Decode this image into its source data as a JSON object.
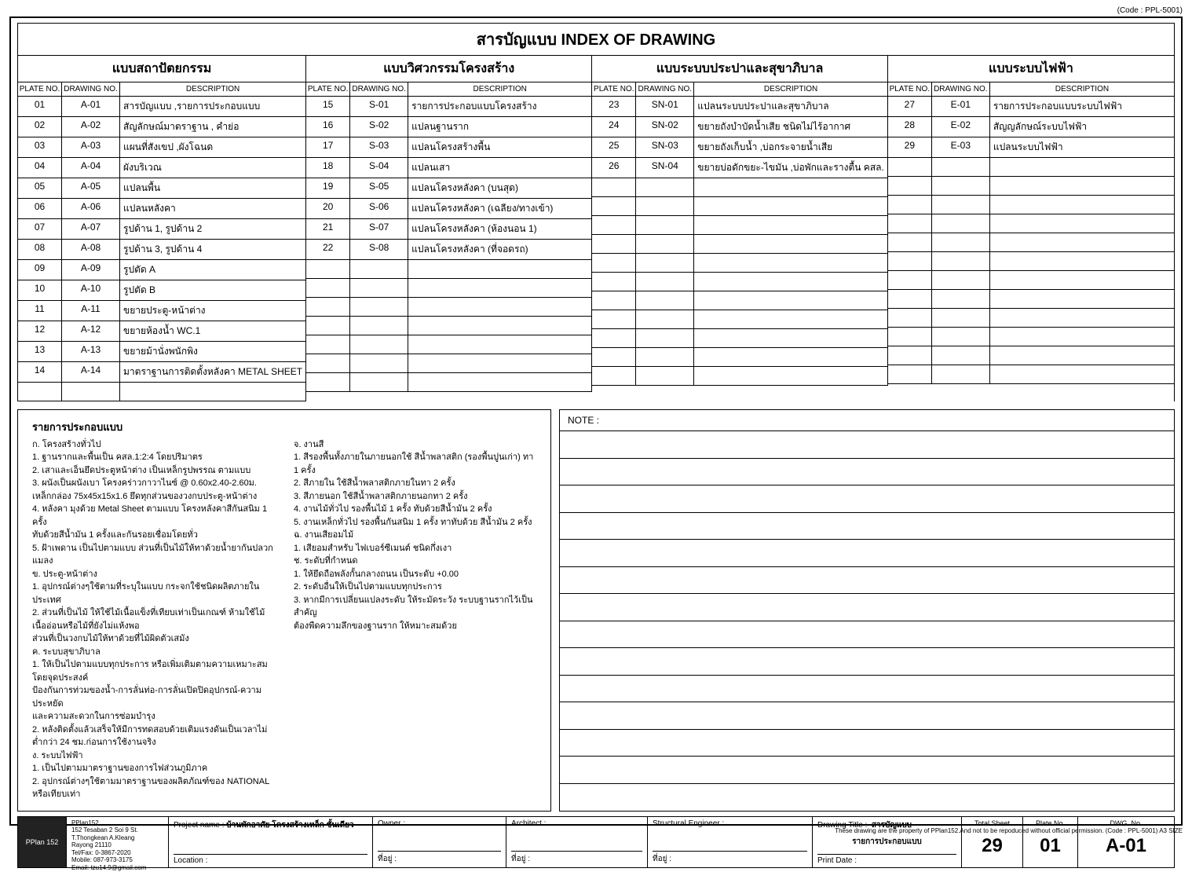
{
  "code_top": "(Code : PPL-5001)",
  "main_title": "สารบัญแบบ INDEX OF DRAWING",
  "col_labels": {
    "plate": "PLATE NO.",
    "dwg": "DRAWING NO.",
    "desc": "DESCRIPTION"
  },
  "sections": [
    {
      "title": "แบบสถาปัตยกรรม",
      "rows": [
        {
          "p": "01",
          "d": "A-01",
          "desc": "สารบัญแบบ ,รายการประกอบแบบ"
        },
        {
          "p": "02",
          "d": "A-02",
          "desc": "สัญลักษณ์มาตราฐาน , คำย่อ"
        },
        {
          "p": "03",
          "d": "A-03",
          "desc": "แผนที่สังเขป ,ผังโฉนด"
        },
        {
          "p": "04",
          "d": "A-04",
          "desc": "ผังบริเวณ"
        },
        {
          "p": "05",
          "d": "A-05",
          "desc": "แปลนพื้น"
        },
        {
          "p": "06",
          "d": "A-06",
          "desc": "แปลนหลังคา"
        },
        {
          "p": "07",
          "d": "A-07",
          "desc": "รูปด้าน 1, รูปด้าน 2"
        },
        {
          "p": "08",
          "d": "A-08",
          "desc": "รูปด้าน 3, รูปด้าน 4"
        },
        {
          "p": "09",
          "d": "A-09",
          "desc": "รูปตัด A"
        },
        {
          "p": "10",
          "d": "A-10",
          "desc": "รูปตัด B"
        },
        {
          "p": "11",
          "d": "A-11",
          "desc": "ขยายประตู-หน้าต่าง"
        },
        {
          "p": "12",
          "d": "A-12",
          "desc": "ขยายห้องน้ำ WC.1"
        },
        {
          "p": "13",
          "d": "A-13",
          "desc": "ขยายม้านั่งพนักพิง"
        },
        {
          "p": "14",
          "d": "A-14",
          "desc": "มาตราฐานการติดตั้งหลังคา METAL SHEET"
        },
        {
          "p": "",
          "d": "",
          "desc": ""
        }
      ]
    },
    {
      "title": "แบบวิศวกรรมโครงสร้าง",
      "rows": [
        {
          "p": "15",
          "d": "S-01",
          "desc": "รายการประกอบแบบโครงสร้าง"
        },
        {
          "p": "16",
          "d": "S-02",
          "desc": "แปลนฐานราก"
        },
        {
          "p": "17",
          "d": "S-03",
          "desc": "แปลนโครงสร้างพื้น"
        },
        {
          "p": "18",
          "d": "S-04",
          "desc": "แปลนเสา"
        },
        {
          "p": "19",
          "d": "S-05",
          "desc": "แปลนโครงหลังคา (บนสุด)"
        },
        {
          "p": "20",
          "d": "S-06",
          "desc": "แปลนโครงหลังคา (เฉลียง/ทางเข้า)"
        },
        {
          "p": "21",
          "d": "S-07",
          "desc": "แปลนโครงหลังคา (ห้องนอน 1)"
        },
        {
          "p": "22",
          "d": "S-08",
          "desc": "แปลนโครงหลังคา (ที่จอดรถ)"
        },
        {
          "p": "",
          "d": "",
          "desc": ""
        },
        {
          "p": "",
          "d": "",
          "desc": ""
        },
        {
          "p": "",
          "d": "",
          "desc": ""
        },
        {
          "p": "",
          "d": "",
          "desc": ""
        },
        {
          "p": "",
          "d": "",
          "desc": ""
        },
        {
          "p": "",
          "d": "",
          "desc": ""
        },
        {
          "p": "",
          "d": "",
          "desc": ""
        }
      ]
    },
    {
      "title": "แบบระบบประปาและสุขาภิบาล",
      "rows": [
        {
          "p": "23",
          "d": "SN-01",
          "desc": "แปลนระบบประปาและสุขาภิบาล"
        },
        {
          "p": "24",
          "d": "SN-02",
          "desc": "ขยายถังบำบัดน้ำเสีย ชนิดไม่ไร้อากาศ"
        },
        {
          "p": "25",
          "d": "SN-03",
          "desc": "ขยายถังเก็บน้ำ ,บ่อกระจายน้ำเสีย"
        },
        {
          "p": "26",
          "d": "SN-04",
          "desc": "ขยายบ่อดักขยะ-ไขมัน ,บ่อพักและรางตื้น คสล."
        },
        {
          "p": "",
          "d": "",
          "desc": ""
        },
        {
          "p": "",
          "d": "",
          "desc": ""
        },
        {
          "p": "",
          "d": "",
          "desc": ""
        },
        {
          "p": "",
          "d": "",
          "desc": ""
        },
        {
          "p": "",
          "d": "",
          "desc": ""
        },
        {
          "p": "",
          "d": "",
          "desc": ""
        },
        {
          "p": "",
          "d": "",
          "desc": ""
        },
        {
          "p": "",
          "d": "",
          "desc": ""
        },
        {
          "p": "",
          "d": "",
          "desc": ""
        },
        {
          "p": "",
          "d": "",
          "desc": ""
        },
        {
          "p": "",
          "d": "",
          "desc": ""
        }
      ]
    },
    {
      "title": "แบบระบบไฟฟ้า",
      "rows": [
        {
          "p": "27",
          "d": "E-01",
          "desc": "รายการประกอบแบบระบบไฟฟ้า"
        },
        {
          "p": "28",
          "d": "E-02",
          "desc": "สัญญลักษณ์ระบบไฟฟ้า"
        },
        {
          "p": "29",
          "d": "E-03",
          "desc": "แปลนระบบไฟฟ้า"
        },
        {
          "p": "",
          "d": "",
          "desc": ""
        },
        {
          "p": "",
          "d": "",
          "desc": ""
        },
        {
          "p": "",
          "d": "",
          "desc": ""
        },
        {
          "p": "",
          "d": "",
          "desc": ""
        },
        {
          "p": "",
          "d": "",
          "desc": ""
        },
        {
          "p": "",
          "d": "",
          "desc": ""
        },
        {
          "p": "",
          "d": "",
          "desc": ""
        },
        {
          "p": "",
          "d": "",
          "desc": ""
        },
        {
          "p": "",
          "d": "",
          "desc": ""
        },
        {
          "p": "",
          "d": "",
          "desc": ""
        },
        {
          "p": "",
          "d": "",
          "desc": ""
        },
        {
          "p": "",
          "d": "",
          "desc": ""
        }
      ]
    }
  ],
  "notes": {
    "title": "รายการประกอบแบบ",
    "left": [
      "ก. โครงสร้างทั่วไป",
      "   1. ฐานรากและพื้นเป็น คสล.1:2:4 โดยปริมาตร",
      "   2. เสาและเอ็นยึดประตูหน้าต่าง เป็นเหล็กรูปพรรณ ตามแบบ",
      "   3. ผนังเป็นผนังเบา โครงคร่าวกาวาไนซ์ @ 0.60x2.40-2.60ม.",
      "      เหล็กกล่อง 75x45x15x1.6 ยึดทุกส่วนของวงกบประตู-หน้าต่าง",
      "   4. หลังคา มุงด้วย Metal Sheet ตามแบบ โครงหลังคาสีกันสนิม 1 ครั้ง",
      "      ทับด้วยสีน้ำมัน 1 ครั้งและกันรอยเชื่อมโดยทั่ว",
      "   5. ฝ้าเพดาน เป็นไปตามแบบ ส่วนที่เป็นไม้ให้ทาด้วยน้ำยากันปลวกแมลง",
      "ข. ประตู-หน้าต่าง",
      "   1. อุปกรณ์ต่างๆใช้ตามที่ระบุในแบบ กระจกใช้ชนิดผลิตภายในประเทศ",
      "   2. ส่วนที่เป็นไม้ ให้ใช้ไม้เนื้อแข็งที่เทียบเท่าเป็นเกณฑ์ ห้ามใช้ไม้เนื้ออ่อนหรือไม้ที่ยังไม่แห้งพอ",
      "      ส่วนที่เป็นวงกบไม้ให้ทาด้วยที่ไม้ผิดตัวเสมัง",
      "ค. ระบบสุขาภิบาล",
      "   1. ให้เป็นไปตามแบบทุกประการ หรือเพิ่มเติมตามความเหมาะสมโดยจุดประสงค์",
      "      ป้องกันการท่วมของน้ำ-การลั่นท่อ-การลั่นเปิดปิดอุปกรณ์-ความประหยัด",
      "      และความสะดวกในการซ่อมบำรุง",
      "   2. หลังติดตั้งแล้วเสร็จให้มีการทดสอบด้วยเติมแรงดันเป็นเวลาไม่ต่ำกว่า 24 ชม.ก่อนการใช้งานจริง",
      "ง. ระบบไฟฟ้า",
      "   1. เป็นไปตามมาตราฐานของการไฟส่วนภูมิภาค",
      "   2. อุปกรณ์ต่างๆใช้ตามมาตราฐานของผลิตภัณฑ์ของ NATIONAL หรือเทียบเท่า"
    ],
    "right": [
      "จ. งานสี",
      "   1. สีรองพื้นทั้งภายในภายนอกใช้ สีน้ำพลาสติก (รองพื้นปูนเก่า) ทา 1 ครั้ง",
      "   2. สีภายใน ใช้สีน้ำพลาสติกภายในทา 2 ครั้ง",
      "   3. สีภายนอก ใช้สีน้ำพลาสติกภายนอกทา 2 ครั้ง",
      "   4. งานไม้ทั่วไป รองพื้นไม้ 1 ครั้ง ทับด้วยสีน้ำมัน 2 ครั้ง",
      "   5. งานเหล็กทั่วไป รองพื้นกันสนิม 1 ครั้ง ทาทับด้วย สีน้ำมัน 2 ครั้ง",
      "ฉ. งานเสียอมไม้",
      "   1. เสียอมสำหรับ ไฟเบอร์ซีเมนต์ ชนิดกึ่งเงา",
      "ช. ระดับที่กำหนด",
      "   1. ให้ยึดถือพลังกั้นกลางถนน เป็นระดับ +0.00",
      "   2. ระดับอื่นให้เป็นไปตามแบบทุกประการ",
      "   3. หากมีการเปลี่ยนแปลงระดับ ให้ระมัดระวัง ระบบฐานรากไว้เป็นสำคัญ",
      "      ต้องพืดความลึกของฐานราก ให้หมาะสมด้วย"
    ]
  },
  "note_right_label": "NOTE :",
  "note_right_lines": 14,
  "titleblock": {
    "logo_text": "PPlan 152",
    "firm": "PPlan152\n152 Tesaban 2 Soi 9 St.\nT.Thongkean A.Kleang\nRayong 21110\nTel/Fax: 0-3867-2020\nMobile: 087-973-3175\nEmail: tzu14.9@gmail.com",
    "project_label": "Project name :",
    "project_value": "บ้านพักอาศัย โครงสร้างเหล็ก ชั้นเดียว",
    "location_label": "Location :",
    "owner_label": "Owner :",
    "owner_addr": "ที่อยู่ :",
    "arch_label": "Architect :",
    "arch_addr": "ที่อยู่ :",
    "struct_label": "Structural Engineer :",
    "struct_addr": "ที่อยู่ :",
    "dtitle_label": "Drawing Title :",
    "dtitle_value1": "สารบัญแบบ",
    "dtitle_value2": "รายการประกอบแบบ",
    "print_label": "Print Date :",
    "total_label": "Total Sheet",
    "total_value": "29",
    "plate_label": "Plate No.",
    "plate_value": "01",
    "dwgno_label": "DWG. No.",
    "dwgno_value": "A-01"
  },
  "footer": "These drawing are the property of PPlan152.And not to be repoduced without official permission. (Code : PPL-5001) A3 SIZE"
}
